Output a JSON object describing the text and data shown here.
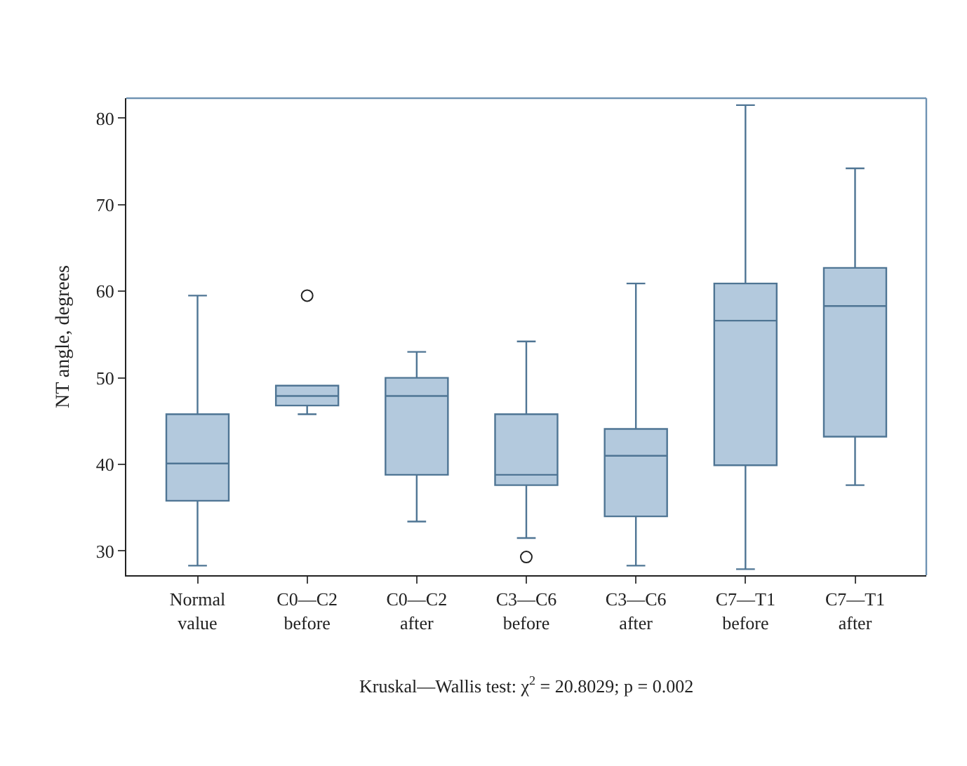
{
  "chart_data": {
    "type": "box",
    "ylabel": "NT angle, degrees",
    "categories": [
      "Normal\nvalue",
      "C0—C2\nbefore",
      "C0—C2\nafter",
      "C3—C6\nbefore",
      "C3—C6\nafter",
      "C7—T1\nbefore",
      "C7—T1\nafter"
    ],
    "boxes": [
      {
        "low": 28.3,
        "q1": 35.8,
        "median": 40.1,
        "q3": 45.8,
        "high": 59.5
      },
      {
        "low": 45.8,
        "q1": 46.8,
        "median": 47.9,
        "q3": 49.1,
        "high": 49.1,
        "outliers": [
          59.5
        ]
      },
      {
        "low": 33.4,
        "q1": 38.8,
        "median": 47.9,
        "q3": 50.0,
        "high": 53.0
      },
      {
        "low": 31.5,
        "q1": 37.6,
        "median": 38.8,
        "q3": 45.8,
        "high": 54.2,
        "outliers": [
          29.3
        ]
      },
      {
        "low": 28.3,
        "q1": 34.0,
        "median": 41.0,
        "q3": 44.1,
        "high": 60.9
      },
      {
        "low": 27.9,
        "q1": 39.9,
        "median": 56.6,
        "q3": 60.9,
        "high": 81.5
      },
      {
        "low": 37.6,
        "q1": 43.2,
        "median": 58.3,
        "q3": 62.7,
        "high": 74.2
      }
    ],
    "color": "#b3c9dd",
    "ylim": [
      27.2,
      82.3
    ],
    "yticks": [
      30,
      40,
      50,
      60,
      70,
      80
    ],
    "annotations": [
      "Kruskal—Wallis test: χ$^{2}$ = 20.8029; p = 0.002"
    ]
  }
}
